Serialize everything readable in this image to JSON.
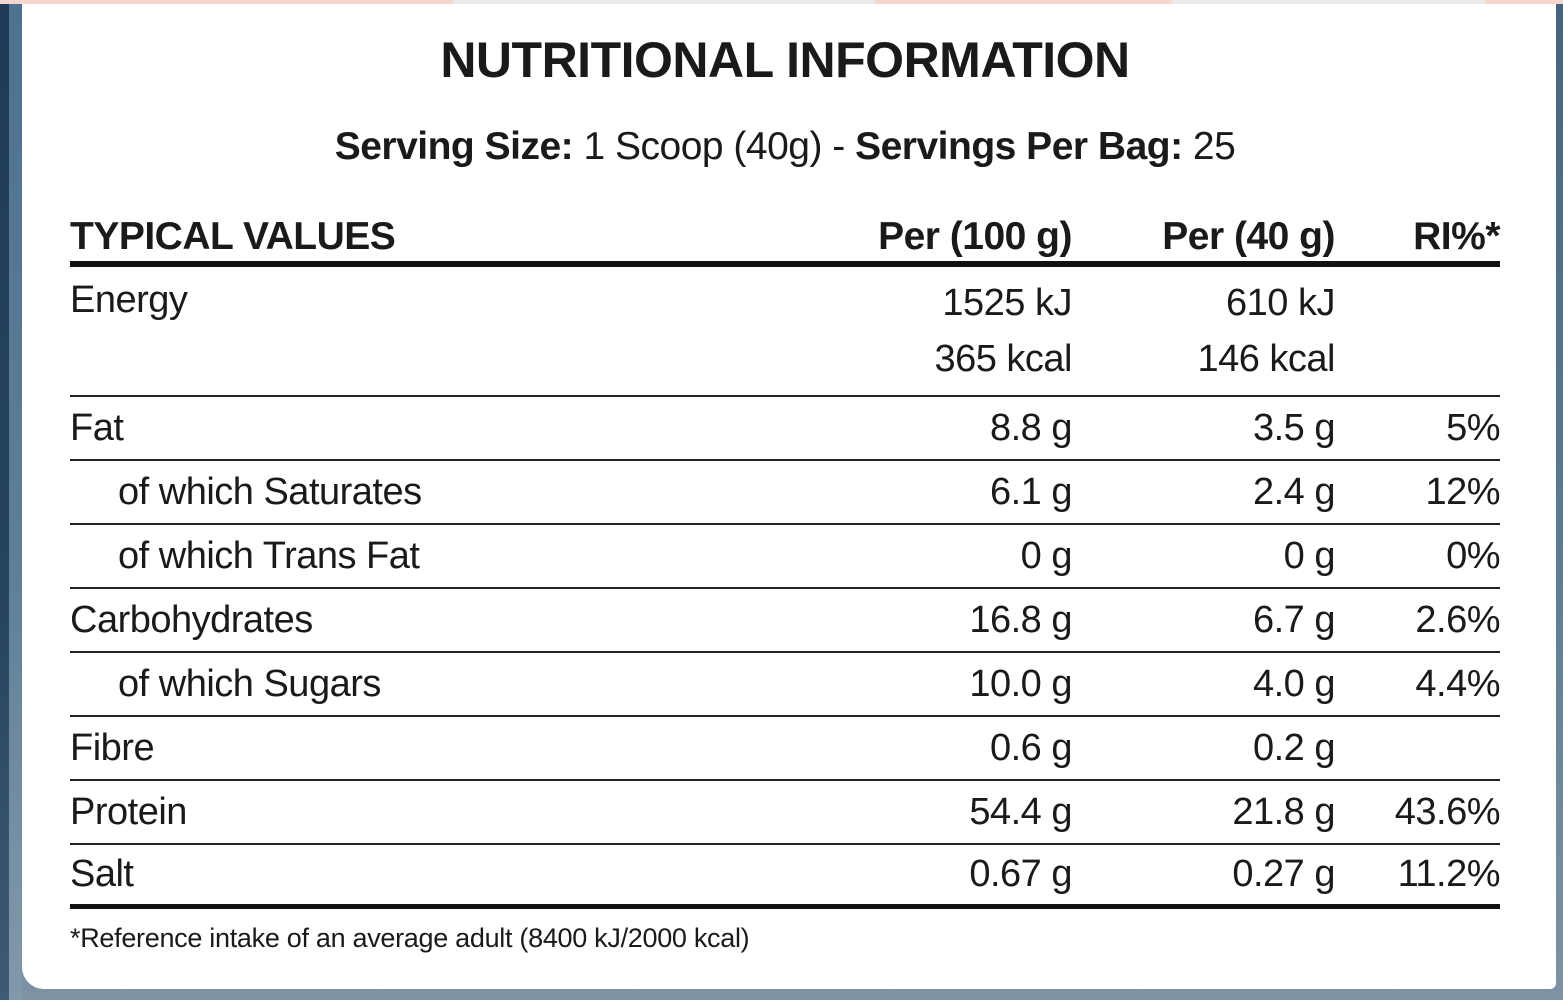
{
  "title": "NUTRITIONAL INFORMATION",
  "serving": {
    "part1": "Serving Size:",
    "part2": " 1 Scoop (40g) - ",
    "part3": "Servings Per Bag:",
    "part4": " 25"
  },
  "table": {
    "headers": [
      "TYPICAL VALUES",
      "Per (100 g)",
      "Per (40 g)",
      "RI%*"
    ],
    "rows": [
      {
        "label": "Energy",
        "double": true,
        "per100": "1525 kJ",
        "per100_2": "365 kcal",
        "per40": "610 kJ",
        "per40_2": "146 kcal",
        "ri": "",
        "ri_2": ""
      },
      {
        "label": "Fat",
        "per100": "8.8 g",
        "per40": "3.5 g",
        "ri": "5%"
      },
      {
        "label": "of which Saturates",
        "indent": true,
        "per100": "6.1 g",
        "per40": "2.4 g",
        "ri": "12%"
      },
      {
        "label": "of which Trans Fat",
        "indent": true,
        "per100": "0 g",
        "per40": "0 g",
        "ri": "0%"
      },
      {
        "label": "Carbohydrates",
        "per100": "16.8 g",
        "per40": "6.7 g",
        "ri": "2.6%"
      },
      {
        "label": "of which Sugars",
        "indent": true,
        "per100": "10.0 g",
        "per40": "4.0 g",
        "ri": "4.4%"
      },
      {
        "label": "Fibre",
        "per100": "0.6 g",
        "per40": "0.2 g",
        "ri": ""
      },
      {
        "label": "Protein",
        "per100": "54.4 g",
        "per40": "21.8 g",
        "ri": "43.6%"
      },
      {
        "label": "Salt",
        "thick_bottom": true,
        "per100": "0.67 g",
        "per40": "0.27 g",
        "ri": "11.2%"
      }
    ]
  },
  "footnote": "*Reference intake of an average adult (8400 kJ/2000 kcal)",
  "colors": {
    "text": "#1a1a1a",
    "rule_thin": "#222222",
    "rule_thick": "#121212",
    "edge_navy": "#1e3a57",
    "edge_slate": "#4e7190",
    "edge_slate_light": "#8299aa",
    "bottom_bar": "#54718a",
    "top_strip_pink": "#f6d6ce",
    "top_strip_gray": "#e9ebeb",
    "card_bg": "#ffffff"
  }
}
